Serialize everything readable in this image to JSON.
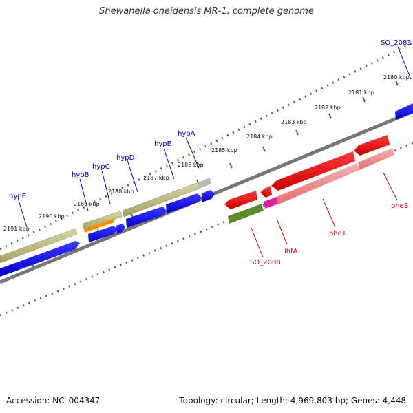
{
  "title": "Shewanella oneidensis MR-1, complete genome",
  "footer": {
    "accession": "Accession: NC_004347",
    "summary": "Topology: circular; Length: 4,969,803 bp; Genes: 4,448"
  },
  "colors": {
    "backbone": "#777777",
    "tick": "#2e7d2e",
    "forward_gene": "#0000ee",
    "reverse_gene": "#ee0000",
    "label_blue": "#0000cc",
    "label_red": "#cc0000",
    "khaki": "#b5b075",
    "pink": "#ef8a8a",
    "olive": "#5d8a2a",
    "orange": "#ff8c00",
    "magenta": "#e020a0"
  },
  "kbp_labels": [
    "2180 kbp",
    "2181 kbp",
    "2182 kbp",
    "2183 kbp",
    "2184 kbp",
    "2185 kbp",
    "2186 kbp",
    "2187 kbp",
    "2188 kbp",
    "2189 kbp",
    "2190 kbp",
    "2191 kbp"
  ],
  "genes": {
    "forward": [
      "SO_2083",
      "hypA",
      "hypE",
      "hypD",
      "hypC",
      "hypB",
      "hypF"
    ],
    "reverse": [
      "pheS",
      "pheT",
      "ihfA",
      "SO_2088"
    ]
  }
}
